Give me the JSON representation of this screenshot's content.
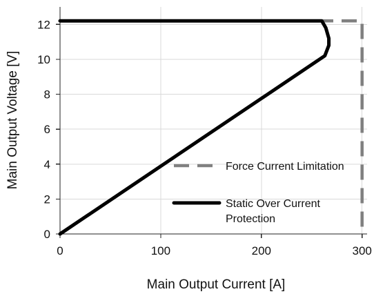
{
  "chart_data": {
    "type": "line",
    "xlabel": "Main Output Current [A]",
    "ylabel": "Main Output Voltage [V]",
    "xlim": [
      0,
      305
    ],
    "ylim": [
      0,
      13
    ],
    "xticks": [
      0,
      100,
      200,
      300
    ],
    "yticks": [
      0,
      2,
      4,
      6,
      8,
      10,
      12
    ],
    "grid": true,
    "legend_position": "bottom-right",
    "series": [
      {
        "name": "Force Current Limitation",
        "style": "dashed",
        "color": "#808080",
        "x": [
          0,
          300,
          300
        ],
        "y": [
          12.2,
          12.2,
          0
        ]
      },
      {
        "name": "Static Over Current Protection",
        "style": "solid",
        "color": "#000000",
        "x": [
          0,
          260,
          264,
          267,
          267,
          263,
          0
        ],
        "y": [
          12.2,
          12.2,
          11.8,
          11.2,
          10.8,
          10.2,
          0
        ]
      }
    ]
  }
}
